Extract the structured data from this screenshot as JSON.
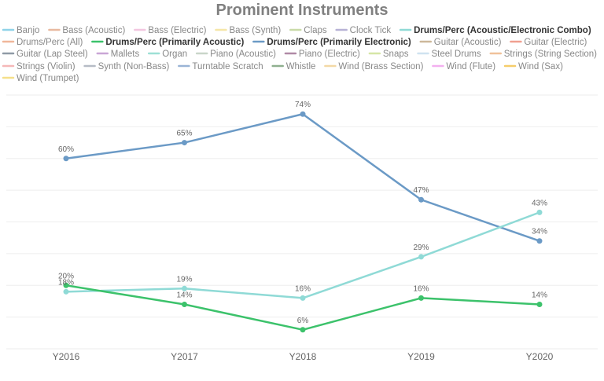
{
  "chart_data": {
    "type": "line",
    "title": "Prominent Instruments",
    "xlabel": "",
    "ylabel": "",
    "categories": [
      "Y2016",
      "Y2017",
      "Y2018",
      "Y2019",
      "Y2020"
    ],
    "ylim": [
      0,
      80
    ],
    "grid": true,
    "legend_position": "top",
    "legend": [
      {
        "name": "Banjo",
        "color": "#8fd3e8",
        "active": false
      },
      {
        "name": "Bass (Acoustic)",
        "color": "#e8b9a0",
        "active": false
      },
      {
        "name": "Bass (Electric)",
        "color": "#f2c6e0",
        "active": false
      },
      {
        "name": "Bass (Synth)",
        "color": "#f5e6a8",
        "active": false
      },
      {
        "name": "Claps",
        "color": "#c9dba8",
        "active": false
      },
      {
        "name": "Clock Tick",
        "color": "#b7b2d6",
        "active": false
      },
      {
        "name": "Drums/Perc (Acoustic/Electronic Combo)",
        "color": "#8fdad6",
        "active": true
      },
      {
        "name": "Drums/Perc (All)",
        "color": "#f0b79a",
        "active": false
      },
      {
        "name": "Drums/Perc (Primarily Acoustic)",
        "color": "#3cc26b",
        "active": true
      },
      {
        "name": "Drums/Perc (Primarily Electronic)",
        "color": "#6b9ac6",
        "active": true
      },
      {
        "name": "Guitar (Acoustic)",
        "color": "#cdb89a",
        "active": false
      },
      {
        "name": "Guitar (Electric)",
        "color": "#f0a090",
        "active": false
      },
      {
        "name": "Guitar (Lap Steel)",
        "color": "#8f9aa6",
        "active": false
      },
      {
        "name": "Mallets",
        "color": "#c9a6d6",
        "active": false
      },
      {
        "name": "Organ",
        "color": "#9ee0d6",
        "active": false
      },
      {
        "name": "Piano (Acoustic)",
        "color": "#c9d6c9",
        "active": false
      },
      {
        "name": "Piano (Electric)",
        "color": "#b08aa6",
        "active": false
      },
      {
        "name": "Snaps",
        "color": "#d6e6a6",
        "active": false
      },
      {
        "name": "Steel Drums",
        "color": "#cfe3f0",
        "active": false
      },
      {
        "name": "Strings (String Section)",
        "color": "#f0c29a",
        "active": false
      },
      {
        "name": "Strings (Violin)",
        "color": "#f5b8b8",
        "active": false
      },
      {
        "name": "Synth (Non-Bass)",
        "color": "#b6bcc6",
        "active": false
      },
      {
        "name": "Turntable Scratch",
        "color": "#9ab4d6",
        "active": false
      },
      {
        "name": "Whistle",
        "color": "#8fb08f",
        "active": false
      },
      {
        "name": "Wind (Brass Section)",
        "color": "#f3d9a6",
        "active": false
      },
      {
        "name": "Wind (Flute)",
        "color": "#f3b0f0",
        "active": false
      },
      {
        "name": "Wind (Sax)",
        "color": "#f5cd6a",
        "active": false
      },
      {
        "name": "Wind (Trumpet)",
        "color": "#f5e08a",
        "active": false
      }
    ],
    "series": [
      {
        "name": "Drums/Perc (Primarily Electronic)",
        "color": "#6b9ac6",
        "values": [
          60,
          65,
          74,
          47,
          34
        ],
        "labels": [
          "60%",
          "65%",
          "74%",
          "47%",
          "34%"
        ]
      },
      {
        "name": "Drums/Perc (Acoustic/Electronic Combo)",
        "color": "#8fdad6",
        "values": [
          18,
          19,
          16,
          29,
          43
        ],
        "labels": [
          "18%",
          "19%",
          "16%",
          "29%",
          "43%"
        ]
      },
      {
        "name": "Drums/Perc (Primarily Acoustic)",
        "color": "#3cc26b",
        "values": [
          20,
          14,
          6,
          16,
          14
        ],
        "labels": [
          "20%",
          "14%",
          "6%",
          "16%",
          "14%"
        ]
      }
    ]
  }
}
